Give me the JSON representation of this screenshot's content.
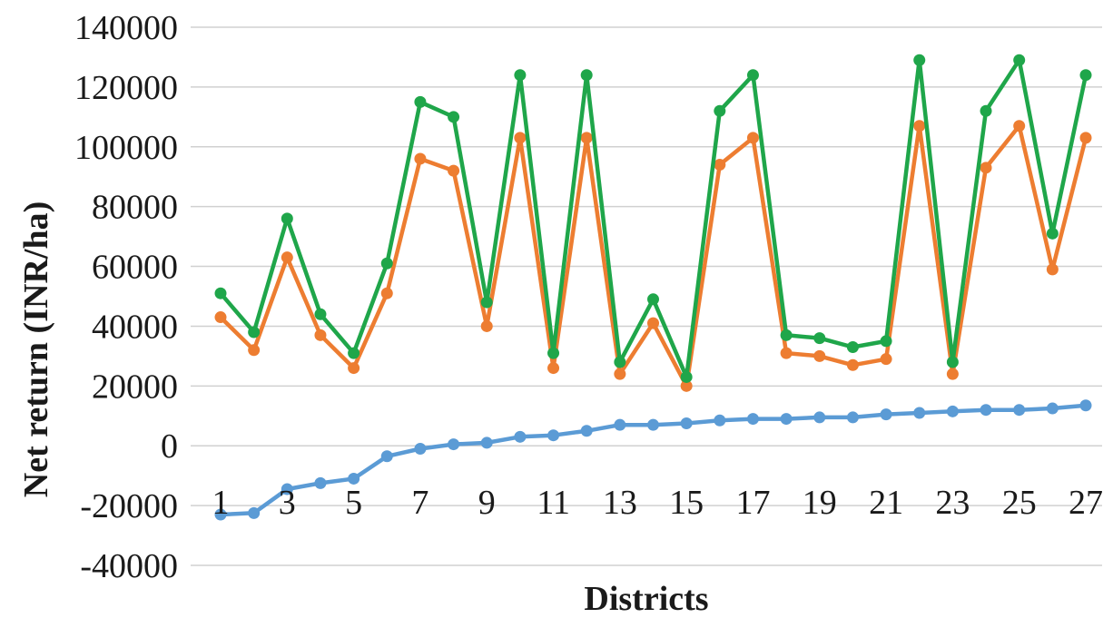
{
  "chart_data": {
    "type": "line",
    "xlabel": "Districts",
    "ylabel": "Net return (INR/ha)",
    "ylim": [
      -40000,
      140000
    ],
    "yticks": [
      -40000,
      -20000,
      0,
      20000,
      40000,
      60000,
      80000,
      100000,
      120000,
      140000
    ],
    "x": [
      1,
      2,
      3,
      4,
      5,
      6,
      7,
      8,
      9,
      10,
      11,
      12,
      13,
      14,
      15,
      16,
      17,
      18,
      19,
      20,
      21,
      22,
      23,
      24,
      25,
      26,
      27
    ],
    "xtick_labels": [
      "1",
      "3",
      "5",
      "7",
      "9",
      "11",
      "13",
      "15",
      "17",
      "19",
      "21",
      "23",
      "25",
      "27"
    ],
    "grid": true,
    "legend": "none",
    "series": [
      {
        "color": "#5B9BD5",
        "values": [
          -23000,
          -22500,
          -14500,
          -12500,
          -11000,
          -3500,
          -1000,
          500,
          1000,
          3000,
          3500,
          5000,
          7000,
          7000,
          7500,
          8500,
          9000,
          9000,
          9500,
          9500,
          10500,
          11000,
          11500,
          12000,
          12000,
          12500,
          13500
        ]
      },
      {
        "color": "#ED7D31",
        "values": [
          43000,
          32000,
          63000,
          37000,
          26000,
          51000,
          96000,
          92000,
          40000,
          103000,
          26000,
          103000,
          24000,
          41000,
          20000,
          94000,
          103000,
          31000,
          30000,
          27000,
          29000,
          107000,
          24000,
          93000,
          107000,
          59000,
          103000
        ]
      },
      {
        "color": "#1FA64A",
        "values": [
          51000,
          38000,
          76000,
          44000,
          31000,
          61000,
          115000,
          110000,
          48000,
          124000,
          31000,
          124000,
          28000,
          49000,
          23000,
          112000,
          124000,
          37000,
          36000,
          33000,
          35000,
          129000,
          28000,
          112000,
          129000,
          71000,
          124000
        ]
      }
    ]
  }
}
